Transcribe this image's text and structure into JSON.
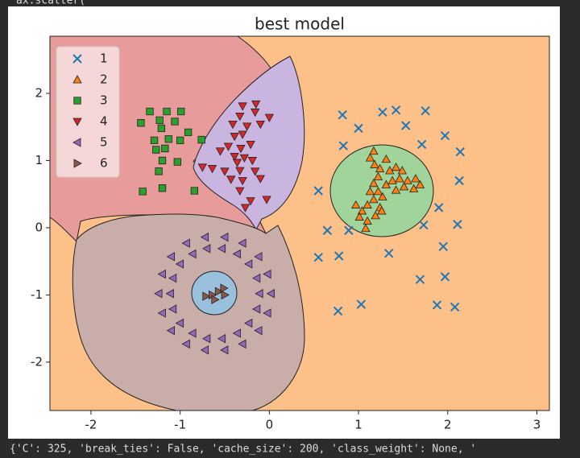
{
  "notebook": {
    "code_line": "ax.scatter(",
    "output_line": "{'C': 325, 'break_ties': False, 'cache_size': 200, 'class_weight': None, '"
  },
  "chart_data": {
    "type": "scatter",
    "title": "best model",
    "xlim": [
      -2.46,
      3.14
    ],
    "ylim": [
      -2.72,
      2.85
    ],
    "xticks": [
      -2,
      -1,
      0,
      1,
      2,
      3
    ],
    "yticks": [
      -2,
      -1,
      0,
      1,
      2
    ],
    "legend": "upper left",
    "series": [
      {
        "name": "1",
        "color": "#1f77b4",
        "marker": "x",
        "x": [
          0.82,
          1.0,
          1.27,
          1.42,
          1.75,
          1.53,
          1.97,
          0.83,
          1.71,
          2.14,
          0.55,
          2.13,
          1.9,
          1.73,
          2.11,
          0.65,
          0.89,
          1.95,
          0.55,
          0.78,
          1.34,
          1.97,
          1.69,
          0.77,
          1.03,
          1.88,
          2.08
        ],
        "values": [
          1.68,
          1.48,
          1.72,
          1.75,
          1.74,
          1.52,
          1.37,
          1.22,
          1.24,
          1.13,
          0.55,
          0.7,
          0.3,
          0.04,
          0.05,
          -0.04,
          -0.04,
          -0.28,
          -0.44,
          -0.42,
          -0.38,
          -0.73,
          -0.77,
          -1.24,
          -1.14,
          -1.15,
          -1.18
        ]
      },
      {
        "name": "2",
        "color": "#ff7f0e",
        "marker": "^",
        "x": [
          1.17,
          1.13,
          1.18,
          1.24,
          1.22,
          1.17,
          1.13,
          1.17,
          1.1,
          1.04,
          0.97,
          1.01,
          1.1,
          1.19,
          1.24,
          1.27,
          1.22,
          1.31,
          1.38,
          1.46,
          1.55,
          1.64,
          1.69,
          1.62,
          1.51,
          1.42,
          1.35,
          1.42,
          1.49,
          1.31,
          1.26,
          1.08
        ],
        "values": [
          1.14,
          1.04,
          0.94,
          0.88,
          0.76,
          0.66,
          0.54,
          0.42,
          0.34,
          0.25,
          0.34,
          0.16,
          0.1,
          0.18,
          0.3,
          0.46,
          0.54,
          0.64,
          0.7,
          0.73,
          0.7,
          0.73,
          0.64,
          0.58,
          0.61,
          0.56,
          0.85,
          0.9,
          0.85,
          1.02,
          0.25,
          -0.01
        ]
      },
      {
        "name": "3",
        "color": "#2ca02c",
        "marker": "s",
        "x": [
          -1.34,
          -1.15,
          -0.99,
          -1.44,
          -1.23,
          -1.06,
          -1.21,
          -1.29,
          -1.13,
          -1.0,
          -0.91,
          -0.76,
          -1.27,
          -1.17,
          -1.2,
          -1.03,
          -1.24,
          -1.42,
          -1.2,
          -0.84
        ],
        "values": [
          1.73,
          1.73,
          1.73,
          1.56,
          1.6,
          1.58,
          1.48,
          1.3,
          1.32,
          1.3,
          1.42,
          1.31,
          1.16,
          1.18,
          1.0,
          0.98,
          0.84,
          0.54,
          0.59,
          0.55
        ]
      },
      {
        "name": "4",
        "color": "#d62728",
        "marker": "v",
        "x": [
          -0.3,
          -0.15,
          -0.33,
          -0.16,
          0.0,
          -0.41,
          -0.25,
          -0.1,
          -0.39,
          -0.3,
          -0.46,
          -0.32,
          -0.21,
          -0.55,
          -0.39,
          -0.28,
          -0.75,
          -0.64,
          -0.36,
          -0.19,
          -0.5,
          -0.33,
          -0.16,
          -0.43,
          -0.3,
          -0.1,
          -0.33,
          -0.03,
          -0.21,
          -0.27
        ],
        "values": [
          1.81,
          1.84,
          1.66,
          1.72,
          1.64,
          1.54,
          1.51,
          1.54,
          1.36,
          1.39,
          1.21,
          1.18,
          1.24,
          1.14,
          1.06,
          1.04,
          0.9,
          0.88,
          0.97,
          1.0,
          0.84,
          0.85,
          0.84,
          0.72,
          0.7,
          0.73,
          0.55,
          0.42,
          0.4,
          0.3
        ]
      },
      {
        "name": "5",
        "color": "#9467bd",
        "marker": "<",
        "x": [
          0.02,
          -0.02,
          -0.12,
          -0.3,
          -0.5,
          -0.72,
          -0.93,
          -1.1,
          -1.2,
          -1.24,
          -1.2,
          -1.1,
          -0.93,
          -0.72,
          -0.5,
          -0.3,
          -0.12,
          -0.02,
          -0.11,
          -0.14,
          -0.23,
          -0.36,
          -0.53,
          -0.7,
          -0.86,
          -1.0,
          -1.08,
          -1.11,
          -1.08,
          -1.0,
          -0.86,
          -0.7,
          -0.53,
          -0.36,
          -0.23,
          -0.14
        ],
        "values": [
          -0.98,
          -0.69,
          -0.43,
          -0.23,
          -0.14,
          -0.14,
          -0.23,
          -0.43,
          -0.69,
          -0.98,
          -1.27,
          -1.53,
          -1.73,
          -1.82,
          -1.82,
          -1.73,
          -1.53,
          -1.27,
          -0.98,
          -0.75,
          -0.54,
          -0.39,
          -0.31,
          -0.31,
          -0.39,
          -0.54,
          -0.75,
          -0.98,
          -1.21,
          -1.42,
          -1.57,
          -1.65,
          -1.65,
          -1.57,
          -1.42,
          -1.21
        ]
      },
      {
        "name": "6",
        "color": "#8c564b",
        "marker": ">",
        "x": [
          -0.71,
          -0.64,
          -0.57,
          -0.51,
          -0.61,
          -0.5
        ],
        "values": [
          -1.02,
          -1.0,
          -0.95,
          -0.9,
          -1.07,
          -1.0
        ]
      }
    ]
  }
}
